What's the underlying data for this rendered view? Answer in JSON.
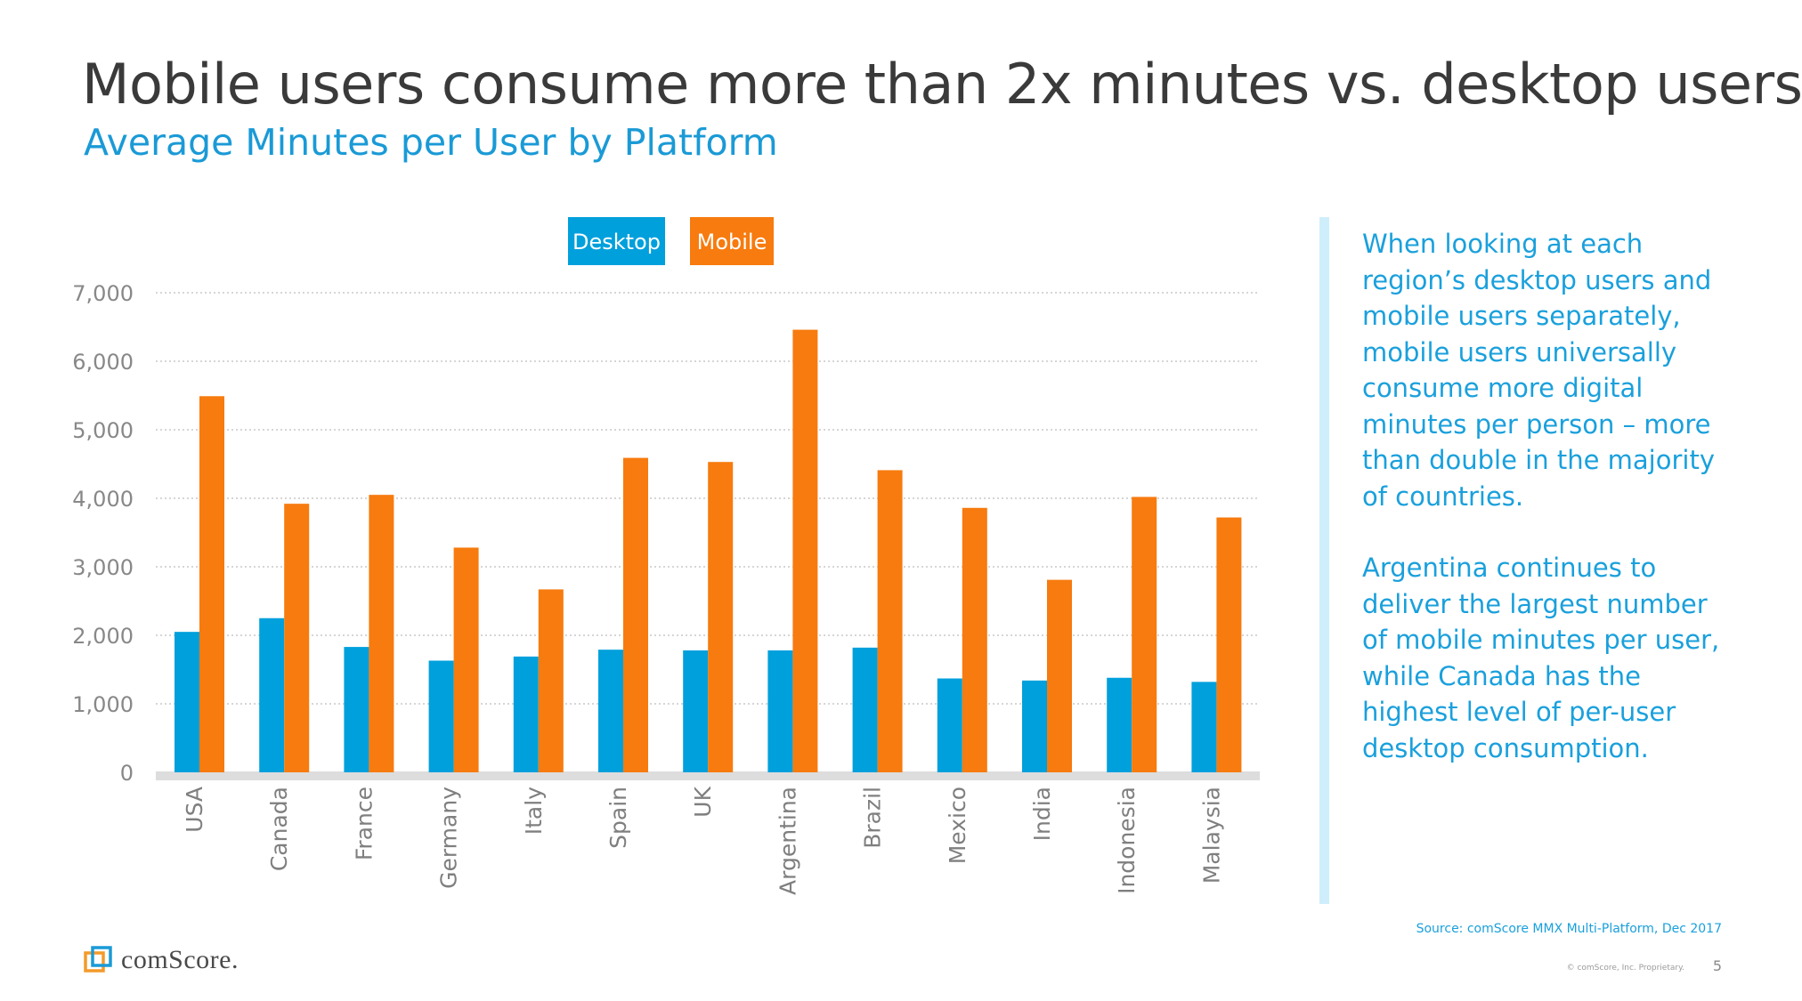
{
  "slide": {
    "title": "Mobile users consume more than 2x minutes vs. desktop users",
    "subtitle": "Average Minutes per User by Platform",
    "notes": [
      "When looking at each region’s desktop users and mobile users separately, mobile users universally consume more digital minutes per person – more than double in the majority of countries.",
      "Argentina continues to deliver the largest number of mobile minutes per user, while Canada has the highest level of per-user desktop consumption."
    ],
    "source": "Source: comScore MMX Multi-Platform, Dec 2017",
    "logo_text": "comScore.",
    "copyright": "© comScore, Inc. Proprietary.",
    "page_number": "5"
  },
  "chart_data": {
    "type": "bar",
    "title": "Average Minutes per User by Platform",
    "xlabel": "",
    "ylabel": "",
    "ylim": [
      0,
      7000
    ],
    "yticks": [
      0,
      1000,
      2000,
      3000,
      4000,
      5000,
      6000,
      7000
    ],
    "ytick_labels": [
      "0",
      "1,000",
      "2,000",
      "3,000",
      "4,000",
      "5,000",
      "6,000",
      "7,000"
    ],
    "grid": true,
    "legend_position": "top-center",
    "categories": [
      "USA",
      "Canada",
      "France",
      "Germany",
      "Italy",
      "Spain",
      "UK",
      "Argentina",
      "Brazil",
      "Mexico",
      "India",
      "Indonesia",
      "Malaysia"
    ],
    "series": [
      {
        "name": "Desktop",
        "color": "#00a0dc",
        "values": [
          2050,
          2250,
          1830,
          1630,
          1690,
          1790,
          1780,
          1780,
          1820,
          1370,
          1340,
          1380,
          1320
        ]
      },
      {
        "name": "Mobile",
        "color": "#f77b0e",
        "values": [
          5490,
          3920,
          4050,
          3280,
          2670,
          4590,
          4530,
          6460,
          4410,
          3860,
          2810,
          4020,
          3720
        ]
      }
    ]
  },
  "colors": {
    "accent_blue": "#1a9ad6",
    "desktop": "#00a0dc",
    "mobile": "#f77b0e",
    "logo_orange": "#f39a2a",
    "logo_blue": "#1a9ad6"
  }
}
